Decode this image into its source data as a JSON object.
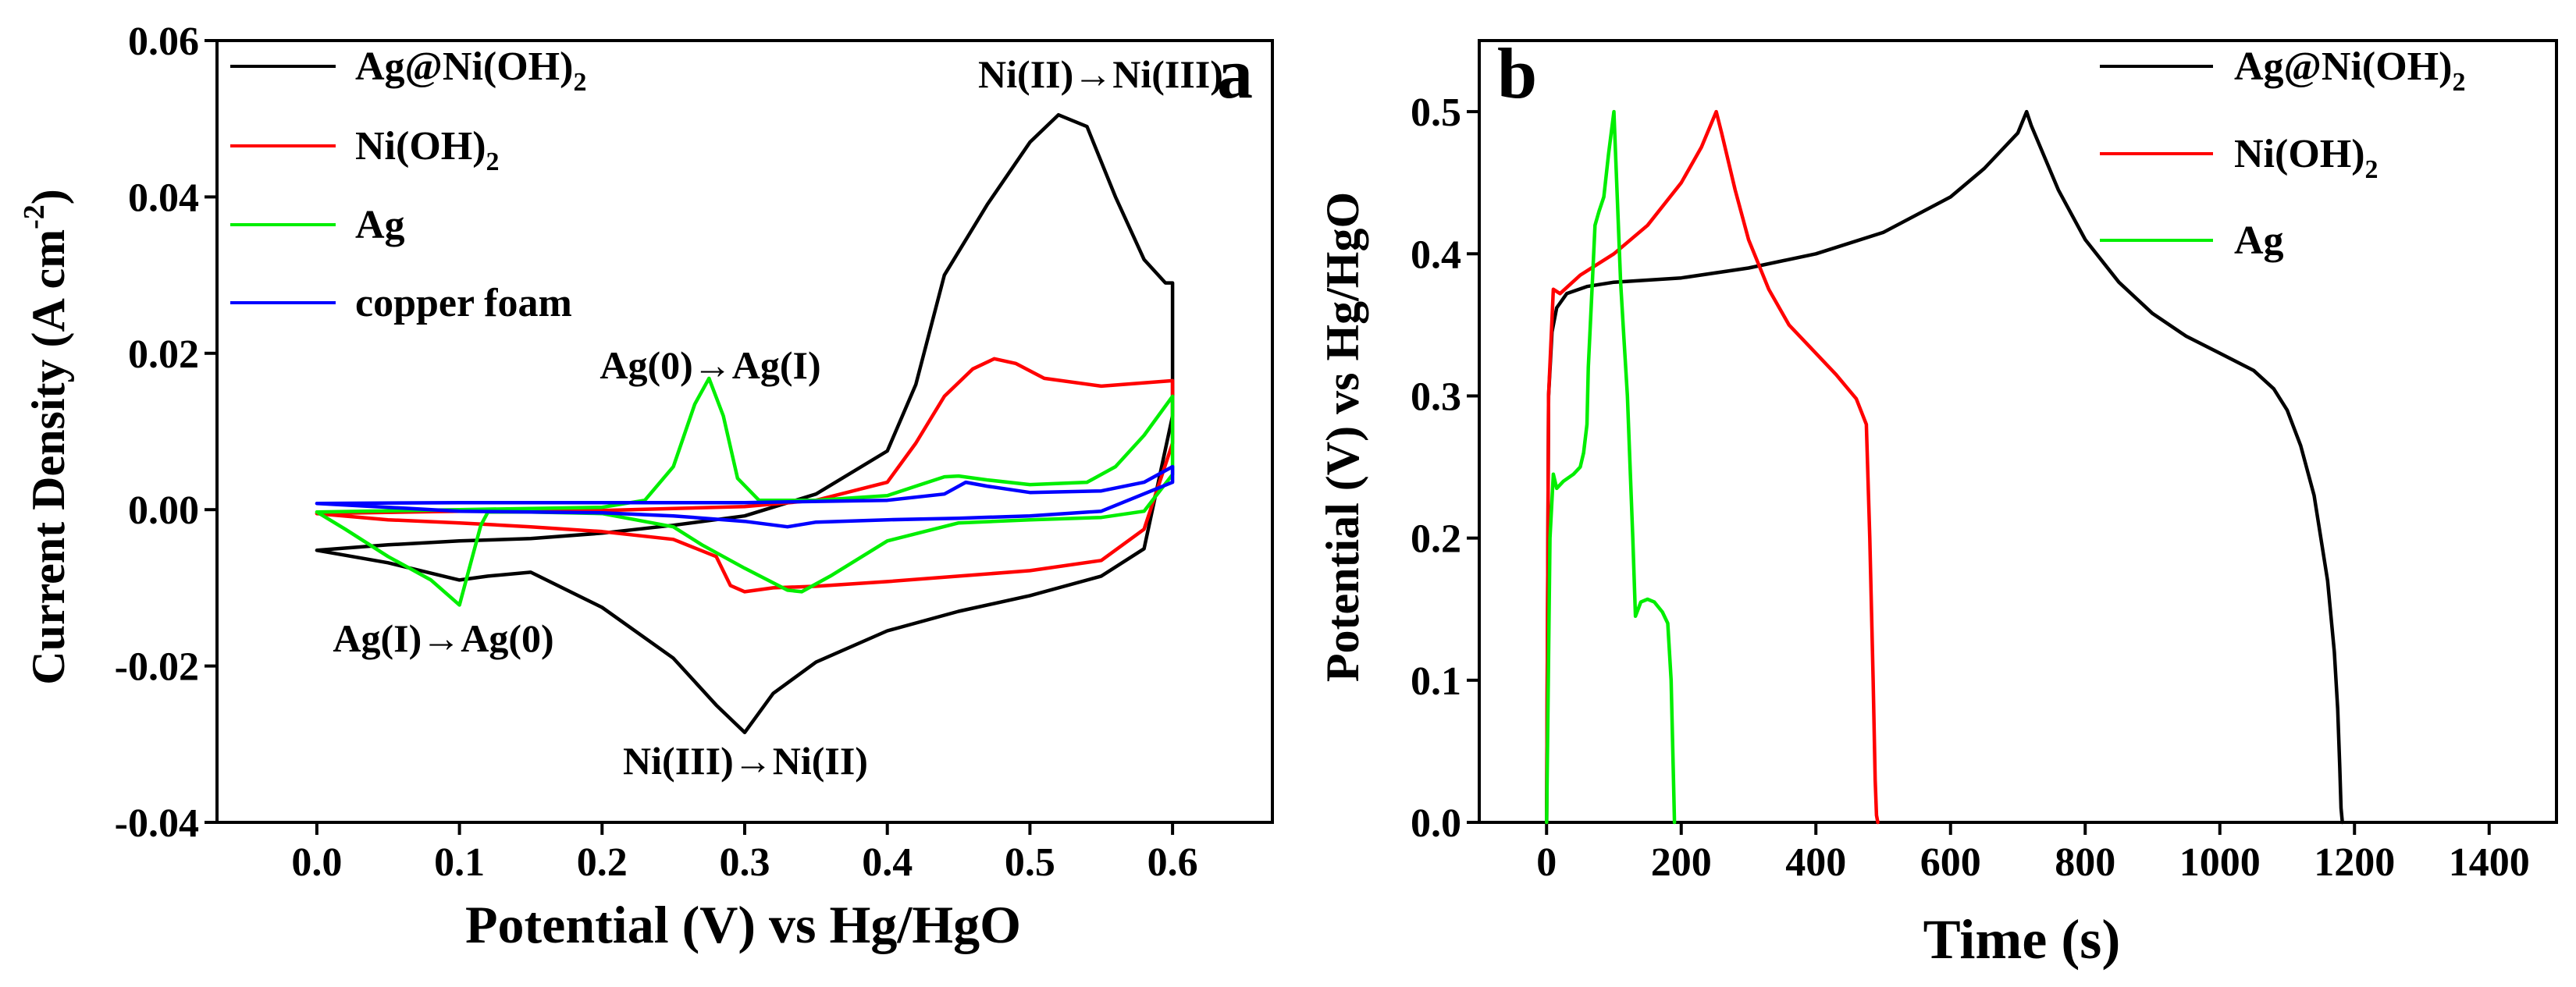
{
  "chart_data": [
    {
      "type": "line",
      "panel_label": "a",
      "xlabel": "Potential (V) vs Hg/HgO",
      "ylabel": "Current Density (A cm",
      "ylabel_sup": "-2",
      "ylabel_suffix": ")",
      "xlim": [
        -0.07,
        0.67
      ],
      "ylim": [
        -0.04,
        0.06
      ],
      "xticks": [
        0.0,
        0.1,
        0.2,
        0.3,
        0.4,
        0.5,
        0.6
      ],
      "xtick_labels": [
        "0.0",
        "0.1",
        "0.2",
        "0.3",
        "0.4",
        "0.5",
        "0.6"
      ],
      "yticks": [
        -0.04,
        -0.02,
        0.0,
        0.02,
        0.04,
        0.06
      ],
      "ytick_labels": [
        "-0.04",
        "-0.02",
        "0.00",
        "0.02",
        "0.04",
        "0.06"
      ],
      "legend": [
        {
          "text": "Ag@Ni(OH)",
          "sub": "2",
          "color": "#000000"
        },
        {
          "text": "Ni(OH)",
          "sub": "2",
          "color": "#ff0000"
        },
        {
          "text": "Ag",
          "sub": "",
          "color": "#00ee00"
        },
        {
          "text": "copper foam",
          "sub": "",
          "color": "#0000ff"
        }
      ],
      "annotations": [
        {
          "text": "Ni(II)→Ni(III)",
          "x": 0.5,
          "y": 0.0545
        },
        {
          "text": "Ag(0)→Ag(I)",
          "x": 0.24,
          "y": 0.0183
        },
        {
          "text": "Ag(I)→Ag(0)",
          "x": 0.085,
          "y": -0.0172
        },
        {
          "text": "Ni(III)→Ni(II)",
          "x": 0.3,
          "y": -0.0325
        }
      ],
      "series": [
        {
          "name": "Ag@Ni(OH)2",
          "color": "#000000",
          "x": [
            0.0,
            0.05,
            0.1,
            0.15,
            0.2,
            0.25,
            0.3,
            0.35,
            0.4,
            0.42,
            0.44,
            0.47,
            0.5,
            0.52,
            0.54,
            0.56,
            0.58,
            0.595,
            0.6,
            0.6,
            0.58,
            0.55,
            0.5,
            0.45,
            0.4,
            0.35,
            0.32,
            0.3,
            0.28,
            0.25,
            0.2,
            0.15,
            0.12,
            0.1,
            0.05,
            0.0
          ],
          "y": [
            -0.0052,
            -0.0045,
            -0.004,
            -0.0037,
            -0.003,
            -0.002,
            -0.0008,
            0.002,
            0.0075,
            0.016,
            0.03,
            0.039,
            0.047,
            0.0505,
            0.049,
            0.04,
            0.032,
            0.029,
            0.029,
            0.012,
            -0.005,
            -0.0085,
            -0.011,
            -0.013,
            -0.0155,
            -0.0195,
            -0.0235,
            -0.0285,
            -0.025,
            -0.019,
            -0.0125,
            -0.008,
            -0.0085,
            -0.009,
            -0.0068,
            -0.0052
          ]
        },
        {
          "name": "Ni(OH)2",
          "color": "#ff0000",
          "x": [
            0.0,
            0.1,
            0.2,
            0.3,
            0.35,
            0.4,
            0.42,
            0.44,
            0.46,
            0.475,
            0.49,
            0.51,
            0.55,
            0.6,
            0.6,
            0.58,
            0.55,
            0.5,
            0.45,
            0.4,
            0.35,
            0.32,
            0.3,
            0.29,
            0.28,
            0.25,
            0.2,
            0.15,
            0.1,
            0.05,
            0.0
          ],
          "y": [
            -0.0005,
            -0.0002,
            -0.0001,
            0.0004,
            0.0012,
            0.0035,
            0.0085,
            0.0145,
            0.018,
            0.0193,
            0.0187,
            0.0168,
            0.0158,
            0.0165,
            0.0085,
            -0.0025,
            -0.0065,
            -0.0078,
            -0.0085,
            -0.0092,
            -0.0098,
            -0.01,
            -0.0105,
            -0.0097,
            -0.006,
            -0.0038,
            -0.0028,
            -0.0022,
            -0.0017,
            -0.0013,
            -0.0005
          ]
        },
        {
          "name": "Ag",
          "color": "#00ee00",
          "x": [
            0.0,
            0.1,
            0.2,
            0.23,
            0.25,
            0.265,
            0.275,
            0.285,
            0.295,
            0.31,
            0.35,
            0.4,
            0.42,
            0.44,
            0.45,
            0.47,
            0.5,
            0.54,
            0.56,
            0.58,
            0.6,
            0.6,
            0.58,
            0.55,
            0.5,
            0.45,
            0.4,
            0.36,
            0.34,
            0.33,
            0.3,
            0.27,
            0.25,
            0.2,
            0.15,
            0.12,
            0.115,
            0.1,
            0.08,
            0.05,
            0.02,
            0.0
          ],
          "y": [
            -0.0003,
            0.0,
            0.0003,
            0.0012,
            0.0055,
            0.0135,
            0.0168,
            0.012,
            0.004,
            0.0012,
            0.0012,
            0.0018,
            0.003,
            0.0042,
            0.0043,
            0.0038,
            0.0032,
            0.0035,
            0.0055,
            0.0095,
            0.0145,
            0.0045,
            -0.0002,
            -0.001,
            -0.0013,
            -0.0017,
            -0.004,
            -0.0085,
            -0.0105,
            -0.0103,
            -0.0075,
            -0.0045,
            -0.0022,
            -0.0005,
            -0.0003,
            -0.0003,
            -0.002,
            -0.0122,
            -0.009,
            -0.006,
            -0.0025,
            -0.0003
          ]
        },
        {
          "name": "copper foam",
          "color": "#0000ff",
          "x": [
            0.0,
            0.1,
            0.2,
            0.3,
            0.4,
            0.44,
            0.455,
            0.47,
            0.5,
            0.55,
            0.58,
            0.6,
            0.6,
            0.55,
            0.5,
            0.45,
            0.4,
            0.35,
            0.33,
            0.3,
            0.25,
            0.2,
            0.1,
            0.0
          ],
          "y": [
            0.0008,
            0.0009,
            0.0009,
            0.0009,
            0.0012,
            0.002,
            0.0035,
            0.003,
            0.0022,
            0.0024,
            0.0035,
            0.0055,
            0.0035,
            -0.0002,
            -0.0008,
            -0.0011,
            -0.0013,
            -0.0016,
            -0.0022,
            -0.0015,
            -0.0008,
            -0.0004,
            -0.0002,
            0.0008
          ]
        }
      ]
    },
    {
      "type": "line",
      "panel_label": "b",
      "xlabel": "Time (s)",
      "ylabel": "Potential (V) vs Hg/HgO",
      "xlim": [
        -100,
        1500
      ],
      "ylim": [
        0.0,
        0.55
      ],
      "xticks": [
        0,
        200,
        400,
        600,
        800,
        1000,
        1200,
        1400
      ],
      "xtick_labels": [
        "0",
        "200",
        "400",
        "600",
        "800",
        "1000",
        "1200",
        "1400"
      ],
      "yticks": [
        0.0,
        0.1,
        0.2,
        0.3,
        0.4,
        0.5
      ],
      "ytick_labels": [
        "0.0",
        "0.1",
        "0.2",
        "0.3",
        "0.4",
        "0.5"
      ],
      "legend": [
        {
          "text": "Ag@Ni(OH)",
          "sub": "2",
          "color": "#000000"
        },
        {
          "text": "Ni(OH)",
          "sub": "2",
          "color": "#ff0000"
        },
        {
          "text": "Ag",
          "sub": "",
          "color": "#00ee00"
        }
      ],
      "series": [
        {
          "name": "Ag@Ni(OH)2",
          "color": "#000000",
          "x": [
            0,
            3,
            8,
            15,
            30,
            60,
            100,
            200,
            300,
            400,
            500,
            600,
            650,
            700,
            713,
            720,
            760,
            800,
            850,
            900,
            950,
            1000,
            1050,
            1080,
            1100,
            1120,
            1140,
            1160,
            1170,
            1175,
            1178,
            1180,
            1182
          ],
          "y": [
            0.0,
            0.3,
            0.345,
            0.362,
            0.372,
            0.377,
            0.38,
            0.383,
            0.39,
            0.4,
            0.415,
            0.44,
            0.46,
            0.485,
            0.5,
            0.49,
            0.445,
            0.41,
            0.38,
            0.358,
            0.342,
            0.33,
            0.318,
            0.305,
            0.29,
            0.265,
            0.23,
            0.17,
            0.12,
            0.08,
            0.04,
            0.01,
            0.0
          ]
        },
        {
          "name": "Ni(OH)2",
          "color": "#ff0000",
          "x": [
            0,
            3,
            10,
            20,
            50,
            100,
            150,
            200,
            230,
            252,
            260,
            280,
            300,
            330,
            360,
            400,
            430,
            460,
            475,
            480,
            485,
            488,
            490,
            492
          ],
          "y": [
            0.0,
            0.3,
            0.375,
            0.372,
            0.385,
            0.4,
            0.42,
            0.45,
            0.475,
            0.5,
            0.485,
            0.445,
            0.41,
            0.375,
            0.35,
            0.33,
            0.315,
            0.298,
            0.28,
            0.2,
            0.1,
            0.03,
            0.005,
            0.0
          ]
        },
        {
          "name": "Ag",
          "color": "#00ee00",
          "x": [
            0,
            5,
            10,
            15,
            25,
            40,
            50,
            55,
            60,
            62,
            68,
            72,
            78,
            85,
            92,
            100,
            105,
            110,
            115,
            120,
            128,
            132,
            140,
            150,
            160,
            172,
            180,
            185,
            188,
            190
          ],
          "y": [
            0.0,
            0.2,
            0.245,
            0.235,
            0.24,
            0.245,
            0.25,
            0.26,
            0.28,
            0.32,
            0.38,
            0.42,
            0.43,
            0.44,
            0.47,
            0.5,
            0.44,
            0.38,
            0.34,
            0.3,
            0.2,
            0.145,
            0.155,
            0.157,
            0.155,
            0.148,
            0.14,
            0.1,
            0.04,
            0.0
          ]
        }
      ]
    }
  ]
}
